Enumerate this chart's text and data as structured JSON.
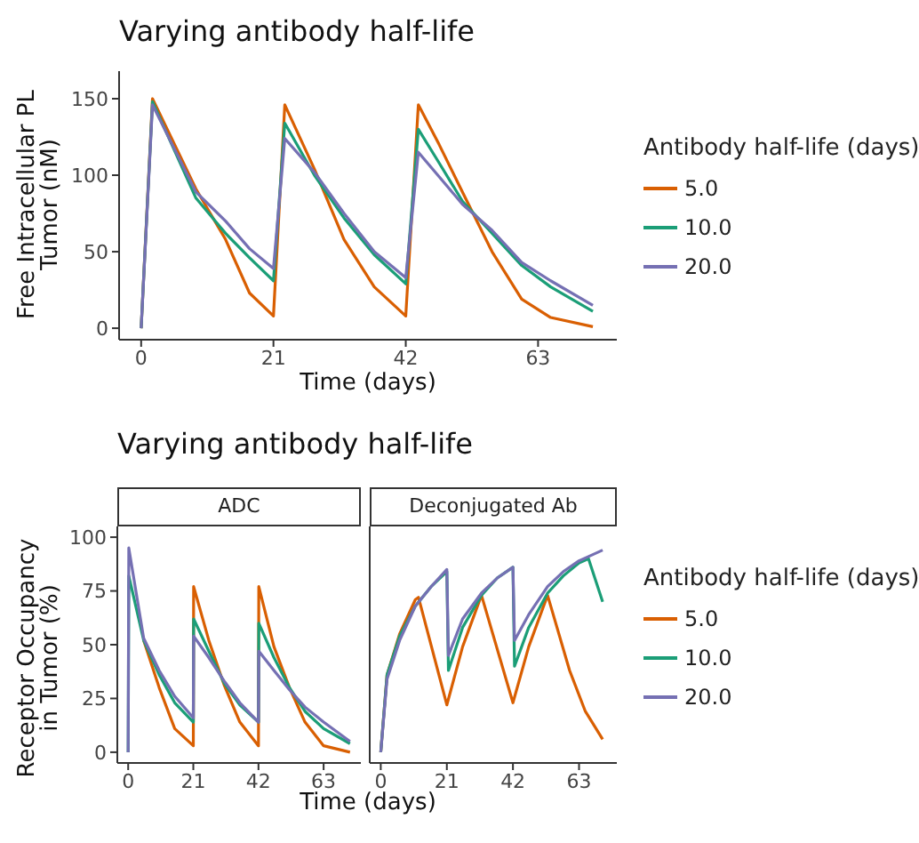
{
  "chart_data": [
    {
      "type": "line",
      "title": "Varying antibody half-life",
      "xlabel": "Time (days)",
      "ylabel": "Free Intracellular PL\nTumor (nM)",
      "legend_title": "Antibody half-life (days)",
      "legend": "right",
      "grid": false,
      "xlim": [
        -3.5,
        75.5
      ],
      "xticks": [
        0,
        21,
        42,
        63
      ],
      "ylim": [
        -7.5,
        168
      ],
      "yticks": [
        0,
        50,
        100,
        150
      ],
      "series": [
        {
          "name": "5.0",
          "color": "#d95f02",
          "x": [
            0,
            1.8,
            8.7,
            13.4,
            17.2,
            21,
            22.8,
            27.5,
            32.2,
            37,
            42,
            44,
            47.3,
            51,
            55.7,
            60.4,
            65,
            71.7
          ],
          "values": [
            0,
            150,
            91,
            58,
            23,
            8,
            146,
            104,
            58,
            27,
            8,
            146,
            120,
            89,
            50,
            19,
            7,
            1
          ]
        },
        {
          "name": "10.0",
          "color": "#1b9e77",
          "x": [
            0,
            1.8,
            8.7,
            13.4,
            17.2,
            21,
            22.8,
            27.5,
            32.2,
            37,
            42,
            44,
            47.3,
            51,
            55.7,
            60.4,
            65,
            71.7
          ],
          "values": [
            0,
            148,
            85,
            62,
            46,
            31,
            134,
            100,
            72,
            48,
            29,
            130,
            108,
            83,
            62,
            41,
            27,
            11
          ]
        },
        {
          "name": "20.0",
          "color": "#7570b3",
          "x": [
            0,
            1.8,
            8.7,
            13.4,
            17.2,
            21,
            22.8,
            27.5,
            32.2,
            37,
            42,
            44,
            47.3,
            51,
            55.7,
            60.4,
            65,
            71.7
          ],
          "values": [
            0,
            146,
            89,
            70,
            52,
            39,
            124,
            102,
            75,
            50,
            33,
            115,
            99,
            81,
            64,
            43,
            31,
            15
          ]
        }
      ]
    },
    {
      "type": "line",
      "title": "Varying antibody half-life",
      "subtitle": "ADC",
      "xlabel": "Time (days)",
      "legend_title": "Antibody half-life (days)",
      "legend": "right",
      "ylabel": "Receptor Occupancy\nin Tumor (%)",
      "grid": false,
      "xlim": [
        -3.5,
        75
      ],
      "xticks": [
        0,
        21,
        42,
        63
      ],
      "ylim": [
        -5,
        105
      ],
      "yticks": [
        0,
        25,
        50,
        75,
        100
      ],
      "series": [
        {
          "name": "5.0",
          "color": "#d95f02",
          "x": [
            5,
            10,
            15,
            21,
            21.1,
            26,
            31,
            36,
            42,
            42.1,
            47,
            52,
            57,
            63,
            71.5
          ],
          "values": [
            52,
            30,
            11,
            3,
            77,
            52,
            31,
            14,
            3,
            77,
            49,
            30,
            14,
            3,
            0
          ]
        },
        {
          "name": "10.0",
          "color": "#1b9e77",
          "x": [
            0,
            0.2,
            5,
            10,
            15,
            21,
            21.1,
            26,
            31,
            36,
            42,
            42.1,
            47,
            52,
            57,
            63,
            71.5
          ],
          "values": [
            0,
            82,
            52,
            36,
            23,
            14,
            62,
            47,
            32,
            22,
            14,
            60,
            44,
            30,
            19,
            11,
            4
          ]
        },
        {
          "name": "20.0",
          "color": "#7570b3",
          "x": [
            0,
            0.2,
            5,
            10,
            15,
            21,
            21.1,
            26,
            31,
            36,
            42,
            42.1,
            47,
            52,
            57,
            63,
            71.5
          ],
          "values": [
            0,
            95,
            53,
            38,
            26,
            16,
            54,
            44,
            33,
            23,
            14,
            47,
            38,
            29,
            21,
            14,
            5
          ]
        }
      ]
    },
    {
      "type": "line",
      "subtitle": "Deconjugated Ab",
      "tick_labels": "x",
      "grid": false,
      "xlim": [
        -3.5,
        75
      ],
      "xticks": [
        0,
        21,
        42,
        63
      ],
      "ylim": [
        -5,
        105
      ],
      "yticks": [
        0,
        25,
        50,
        75,
        100
      ],
      "series": [
        {
          "color": "#d95f02",
          "x": [
            0,
            2,
            6,
            11,
            12,
            21,
            26,
            32,
            42,
            47,
            53,
            60,
            65,
            70.5
          ],
          "values": [
            0,
            36,
            55,
            71,
            72,
            22,
            49,
            73,
            23,
            49,
            73,
            38,
            19,
            6
          ]
        },
        {
          "color": "#1b9e77",
          "x": [
            0,
            2,
            6,
            11,
            16,
            21,
            21.5,
            26,
            32,
            37,
            42,
            42.5,
            47,
            53,
            58,
            63,
            66,
            70.5
          ],
          "values": [
            0,
            36,
            54,
            68,
            77,
            84,
            38,
            58,
            73,
            81,
            86,
            40,
            58,
            74,
            82,
            88,
            90,
            70
          ]
        },
        {
          "color": "#7570b3",
          "x": [
            0,
            2,
            6,
            11,
            16,
            21,
            21.5,
            26,
            32,
            37,
            42,
            42.5,
            47,
            53,
            58,
            63,
            66,
            70.5
          ],
          "values": [
            0,
            34,
            52,
            68,
            77,
            85,
            45,
            62,
            74,
            81,
            86,
            52,
            64,
            77,
            84,
            89,
            91,
            94
          ]
        }
      ]
    }
  ]
}
